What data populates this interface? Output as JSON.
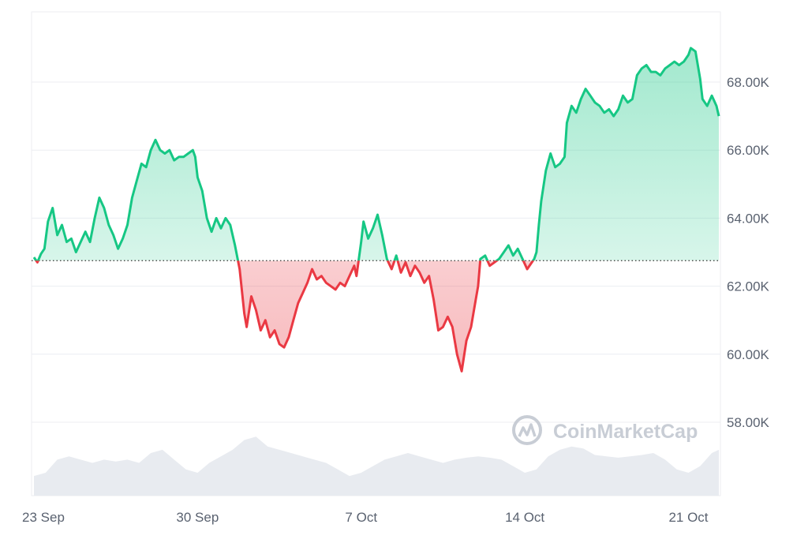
{
  "chart_data": {
    "type": "area",
    "colors": {
      "up": "#16c784",
      "down": "#ea3943",
      "volume": "#e8ebf0",
      "grid": "#eceef2"
    },
    "baseline": 62750,
    "y_ticks": [
      {
        "value": 58000,
        "label": "58.00K"
      },
      {
        "value": 60000,
        "label": "60.00K"
      },
      {
        "value": 62000,
        "label": "62.00K"
      },
      {
        "value": 64000,
        "label": "64.00K"
      },
      {
        "value": 66000,
        "label": "66.00K"
      },
      {
        "value": 68000,
        "label": "68.00K"
      }
    ],
    "x_ticks": [
      {
        "day": 0,
        "label": "23 Sep"
      },
      {
        "day": 7,
        "label": "30 Sep"
      },
      {
        "day": 14,
        "label": "7 Oct"
      },
      {
        "day": 21,
        "label": "14 Oct"
      },
      {
        "day": 28,
        "label": "21 Oct"
      }
    ],
    "price": [
      [
        0.0,
        62850
      ],
      [
        0.15,
        62700
      ],
      [
        0.3,
        62950
      ],
      [
        0.45,
        63100
      ],
      [
        0.6,
        63900
      ],
      [
        0.8,
        64300
      ],
      [
        1.0,
        63500
      ],
      [
        1.2,
        63800
      ],
      [
        1.4,
        63300
      ],
      [
        1.6,
        63400
      ],
      [
        1.8,
        63000
      ],
      [
        2.0,
        63300
      ],
      [
        2.2,
        63600
      ],
      [
        2.4,
        63300
      ],
      [
        2.6,
        64000
      ],
      [
        2.8,
        64600
      ],
      [
        3.0,
        64300
      ],
      [
        3.2,
        63800
      ],
      [
        3.4,
        63500
      ],
      [
        3.6,
        63100
      ],
      [
        3.8,
        63400
      ],
      [
        4.0,
        63800
      ],
      [
        4.2,
        64600
      ],
      [
        4.4,
        65100
      ],
      [
        4.6,
        65600
      ],
      [
        4.8,
        65500
      ],
      [
        5.0,
        66000
      ],
      [
        5.2,
        66300
      ],
      [
        5.4,
        66000
      ],
      [
        5.6,
        65900
      ],
      [
        5.8,
        66000
      ],
      [
        6.0,
        65700
      ],
      [
        6.2,
        65800
      ],
      [
        6.4,
        65800
      ],
      [
        6.6,
        65900
      ],
      [
        6.8,
        66000
      ],
      [
        6.9,
        65800
      ],
      [
        7.0,
        65200
      ],
      [
        7.2,
        64800
      ],
      [
        7.4,
        64000
      ],
      [
        7.6,
        63600
      ],
      [
        7.8,
        64000
      ],
      [
        8.0,
        63700
      ],
      [
        8.2,
        64000
      ],
      [
        8.4,
        63800
      ],
      [
        8.6,
        63200
      ],
      [
        8.8,
        62500
      ],
      [
        9.0,
        61200
      ],
      [
        9.1,
        60800
      ],
      [
        9.3,
        61700
      ],
      [
        9.5,
        61300
      ],
      [
        9.7,
        60700
      ],
      [
        9.9,
        61000
      ],
      [
        10.1,
        60500
      ],
      [
        10.3,
        60700
      ],
      [
        10.5,
        60300
      ],
      [
        10.7,
        60200
      ],
      [
        10.9,
        60500
      ],
      [
        11.1,
        61000
      ],
      [
        11.3,
        61500
      ],
      [
        11.5,
        61800
      ],
      [
        11.7,
        62100
      ],
      [
        11.9,
        62500
      ],
      [
        12.1,
        62200
      ],
      [
        12.3,
        62300
      ],
      [
        12.5,
        62100
      ],
      [
        12.7,
        62000
      ],
      [
        12.9,
        61900
      ],
      [
        13.1,
        62100
      ],
      [
        13.3,
        62000
      ],
      [
        13.5,
        62300
      ],
      [
        13.7,
        62600
      ],
      [
        13.8,
        62300
      ],
      [
        14.0,
        63300
      ],
      [
        14.1,
        63900
      ],
      [
        14.3,
        63400
      ],
      [
        14.5,
        63700
      ],
      [
        14.7,
        64100
      ],
      [
        14.9,
        63500
      ],
      [
        15.1,
        62800
      ],
      [
        15.3,
        62500
      ],
      [
        15.5,
        62900
      ],
      [
        15.7,
        62400
      ],
      [
        15.9,
        62700
      ],
      [
        16.1,
        62300
      ],
      [
        16.3,
        62600
      ],
      [
        16.5,
        62400
      ],
      [
        16.7,
        62100
      ],
      [
        16.9,
        62300
      ],
      [
        17.1,
        61600
      ],
      [
        17.3,
        60700
      ],
      [
        17.5,
        60800
      ],
      [
        17.7,
        61100
      ],
      [
        17.9,
        60800
      ],
      [
        18.1,
        60000
      ],
      [
        18.3,
        59500
      ],
      [
        18.5,
        60400
      ],
      [
        18.7,
        60800
      ],
      [
        18.9,
        61600
      ],
      [
        19.0,
        62000
      ],
      [
        19.1,
        62800
      ],
      [
        19.3,
        62900
      ],
      [
        19.5,
        62600
      ],
      [
        19.7,
        62700
      ],
      [
        19.9,
        62800
      ],
      [
        20.1,
        63000
      ],
      [
        20.3,
        63200
      ],
      [
        20.5,
        62900
      ],
      [
        20.7,
        63100
      ],
      [
        20.9,
        62800
      ],
      [
        21.1,
        62500
      ],
      [
        21.3,
        62700
      ],
      [
        21.4,
        62800
      ],
      [
        21.5,
        63000
      ],
      [
        21.6,
        63800
      ],
      [
        21.7,
        64500
      ],
      [
        21.9,
        65400
      ],
      [
        22.1,
        65900
      ],
      [
        22.3,
        65500
      ],
      [
        22.5,
        65600
      ],
      [
        22.7,
        65800
      ],
      [
        22.8,
        66800
      ],
      [
        23.0,
        67300
      ],
      [
        23.2,
        67100
      ],
      [
        23.4,
        67500
      ],
      [
        23.6,
        67800
      ],
      [
        23.8,
        67600
      ],
      [
        24.0,
        67400
      ],
      [
        24.2,
        67300
      ],
      [
        24.4,
        67100
      ],
      [
        24.6,
        67200
      ],
      [
        24.8,
        67000
      ],
      [
        25.0,
        67200
      ],
      [
        25.2,
        67600
      ],
      [
        25.4,
        67400
      ],
      [
        25.6,
        67500
      ],
      [
        25.8,
        68200
      ],
      [
        26.0,
        68400
      ],
      [
        26.2,
        68500
      ],
      [
        26.4,
        68300
      ],
      [
        26.6,
        68300
      ],
      [
        26.8,
        68200
      ],
      [
        27.0,
        68400
      ],
      [
        27.2,
        68500
      ],
      [
        27.4,
        68600
      ],
      [
        27.6,
        68500
      ],
      [
        27.8,
        68600
      ],
      [
        28.0,
        68800
      ],
      [
        28.1,
        69000
      ],
      [
        28.3,
        68900
      ],
      [
        28.5,
        68100
      ],
      [
        28.6,
        67500
      ],
      [
        28.8,
        67300
      ],
      [
        29.0,
        67600
      ],
      [
        29.2,
        67300
      ],
      [
        29.3,
        67000
      ]
    ],
    "volume": [
      [
        0.0,
        0.3
      ],
      [
        0.5,
        0.35
      ],
      [
        1.0,
        0.55
      ],
      [
        1.5,
        0.6
      ],
      [
        2.0,
        0.55
      ],
      [
        2.5,
        0.5
      ],
      [
        3.0,
        0.55
      ],
      [
        3.5,
        0.52
      ],
      [
        4.0,
        0.55
      ],
      [
        4.5,
        0.5
      ],
      [
        5.0,
        0.65
      ],
      [
        5.5,
        0.7
      ],
      [
        6.0,
        0.55
      ],
      [
        6.5,
        0.4
      ],
      [
        7.0,
        0.35
      ],
      [
        7.5,
        0.5
      ],
      [
        8.0,
        0.6
      ],
      [
        8.5,
        0.7
      ],
      [
        9.0,
        0.85
      ],
      [
        9.5,
        0.9
      ],
      [
        10.0,
        0.75
      ],
      [
        10.5,
        0.7
      ],
      [
        11.0,
        0.65
      ],
      [
        11.5,
        0.6
      ],
      [
        12.0,
        0.55
      ],
      [
        12.5,
        0.5
      ],
      [
        13.0,
        0.4
      ],
      [
        13.5,
        0.3
      ],
      [
        14.0,
        0.35
      ],
      [
        14.5,
        0.45
      ],
      [
        15.0,
        0.55
      ],
      [
        15.5,
        0.6
      ],
      [
        16.0,
        0.65
      ],
      [
        16.5,
        0.6
      ],
      [
        17.0,
        0.55
      ],
      [
        17.5,
        0.5
      ],
      [
        18.0,
        0.55
      ],
      [
        18.5,
        0.58
      ],
      [
        19.0,
        0.6
      ],
      [
        19.5,
        0.58
      ],
      [
        20.0,
        0.55
      ],
      [
        20.5,
        0.45
      ],
      [
        21.0,
        0.35
      ],
      [
        21.5,
        0.4
      ],
      [
        22.0,
        0.6
      ],
      [
        22.5,
        0.7
      ],
      [
        23.0,
        0.75
      ],
      [
        23.5,
        0.72
      ],
      [
        24.0,
        0.62
      ],
      [
        24.5,
        0.6
      ],
      [
        25.0,
        0.58
      ],
      [
        25.5,
        0.6
      ],
      [
        26.0,
        0.62
      ],
      [
        26.5,
        0.65
      ],
      [
        27.0,
        0.55
      ],
      [
        27.5,
        0.4
      ],
      [
        28.0,
        0.35
      ],
      [
        28.5,
        0.45
      ],
      [
        29.0,
        0.65
      ],
      [
        29.3,
        0.7
      ]
    ],
    "x_range": [
      0,
      29.3
    ],
    "y_range": [
      55500,
      70000
    ],
    "grid": true,
    "watermark": "CoinMarketCap"
  }
}
